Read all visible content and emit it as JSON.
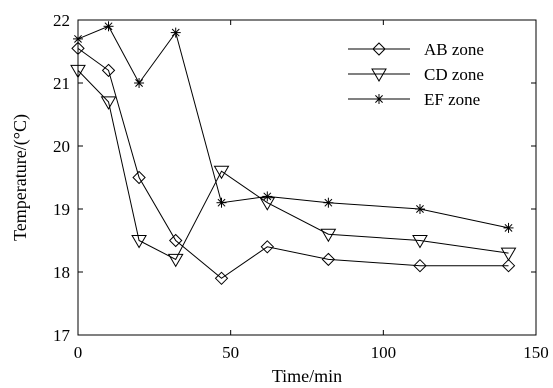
{
  "chart_data": {
    "type": "line",
    "title": "",
    "xlabel": "Time/min",
    "ylabel": "Temperature/(°C)",
    "xlim": [
      0,
      150
    ],
    "ylim": [
      17,
      22
    ],
    "xticks": [
      "0",
      "50",
      "100",
      "150"
    ],
    "yticks": [
      "17",
      "18",
      "19",
      "20",
      "21",
      "22"
    ],
    "grid": false,
    "legend_position": "top-right",
    "series": [
      {
        "name": "AB zone",
        "marker": "diamond",
        "color": "#000000",
        "x": [
          0,
          10,
          20,
          32,
          47,
          62,
          82,
          112,
          141
        ],
        "y": [
          21.55,
          21.2,
          19.5,
          18.5,
          17.9,
          18.4,
          18.2,
          18.1,
          18.1
        ]
      },
      {
        "name": "CD zone",
        "marker": "triangle-down",
        "color": "#000000",
        "x": [
          0,
          10,
          20,
          32,
          47,
          62,
          82,
          112,
          141
        ],
        "y": [
          21.2,
          20.7,
          18.5,
          18.2,
          19.6,
          19.1,
          18.6,
          18.5,
          18.3
        ]
      },
      {
        "name": "EF zone",
        "marker": "star",
        "color": "#000000",
        "x": [
          0,
          10,
          20,
          32,
          47,
          62,
          82,
          112,
          141
        ],
        "y": [
          21.7,
          21.9,
          21.0,
          21.8,
          19.1,
          19.2,
          19.1,
          19.0,
          18.7
        ]
      }
    ]
  }
}
